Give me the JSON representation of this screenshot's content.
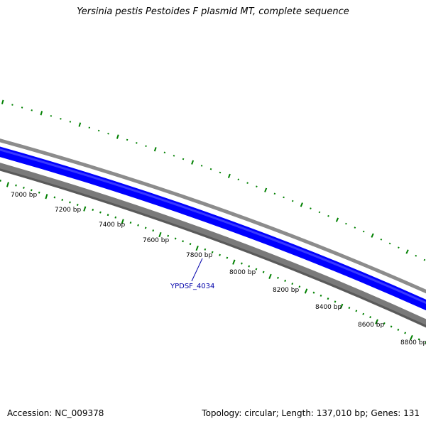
{
  "title": "Yersinia pestis Pestoides F plasmid MT, complete sequence",
  "accession_text": "Accession: NC_009378",
  "summary_text": "Topology: circular; Length: 137,010 bp; Genes: 131",
  "ruler": {
    "labels": [
      "7000 bp",
      "7200 bp",
      "7400 bp",
      "7600 bp",
      "7800 bp",
      "8000 bp",
      "8200 bp",
      "8400 bp",
      "8600 bp",
      "8800 bp"
    ]
  },
  "gene_label": {
    "text": "YPDSF_4034",
    "color": "#0000aa"
  },
  "colors": {
    "forward_cds": "#0000ff",
    "backbone": "#808080",
    "gc_skew": "#008000"
  }
}
